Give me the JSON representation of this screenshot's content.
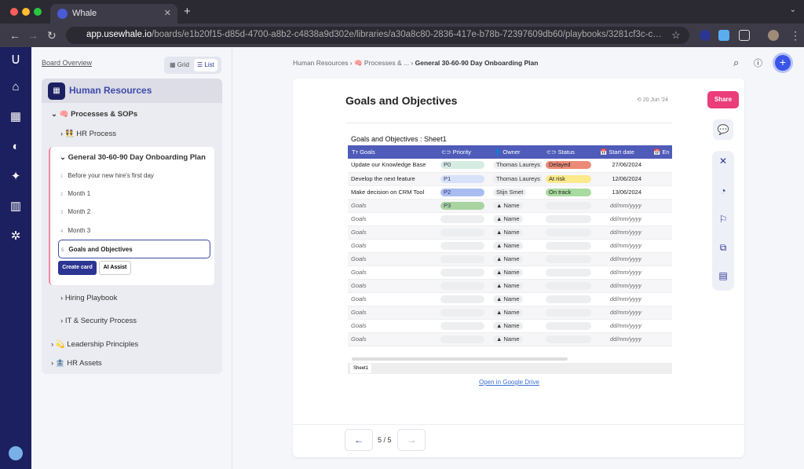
{
  "browser": {
    "tab_title": "Whale",
    "url_host": "app.usewhale.io",
    "url_path": "/boards/e1b20f15-d85d-4700-a8b2-c4838a9d302e/libraries/a30a8c80-2836-417e-b78b-72397609db60/playbooks/3281cf3c-ceae-4cd..."
  },
  "sidebar": {
    "board_overview": "Board Overview",
    "view_grid": "Grid",
    "view_list": "List",
    "space": "Human Resources",
    "items": [
      {
        "label": "🧠 Processes & SOPs"
      },
      {
        "label": "👯 HR Process"
      },
      {
        "label": "General 30-60-90 Day Onboarding Plan"
      },
      {
        "label": "Hiring Playbook"
      },
      {
        "label": "IT & Security Process"
      },
      {
        "label": "💫 Leadership Principles"
      },
      {
        "label": "🏦 HR Assets"
      }
    ],
    "cards": [
      {
        "n": "1",
        "label": "Before your new hire's first day"
      },
      {
        "n": "2",
        "label": "Month 1"
      },
      {
        "n": "3",
        "label": "Month 2"
      },
      {
        "n": "4",
        "label": "Month 3"
      },
      {
        "n": "5",
        "label": "Goals and Objectives"
      }
    ],
    "create_card": "Create card",
    "ai_assist": "AI Assist"
  },
  "breadcrumb": {
    "a": "Human Resources",
    "b": "🧠 Processes & ...",
    "c": "General 30-60-90 Day Onboarding Plan"
  },
  "doc": {
    "title": "Goals and Objectives",
    "date": "20 Jun '24",
    "share": "Share",
    "open_drive": "Open in Google Drive",
    "page": "5 / 5"
  },
  "sheet": {
    "title": "Goals and Objectives : Sheet1",
    "tab": "Sheet1",
    "headers": [
      "Tт Goals",
      "⊂⊃ Priority",
      "👤 Owner",
      "⊂⊃ Status",
      "📅 Start date",
      "📅 En"
    ],
    "rows": [
      {
        "goal": "Update our Knowledge Base",
        "priority": "P0",
        "pcolor": "#d5ece2",
        "owner": "Thomas Laureys",
        "status": "Delayed",
        "scolor": "#ec8a78",
        "date": "27/06/2024"
      },
      {
        "goal": "Develop the next feature",
        "priority": "P1",
        "pcolor": "#d7e2fa",
        "owner": "Thomas Laureys",
        "status": "At risk",
        "scolor": "#fbe98c",
        "date": "12/06/2024"
      },
      {
        "goal": "Make decision on CRM Tool",
        "priority": "P2",
        "pcolor": "#a9bdf3",
        "owner": "Stijn Smet",
        "status": "On track",
        "scolor": "#a9dba0",
        "date": "13/06/2024"
      },
      {
        "goal": "Goals",
        "priority": "P3",
        "pcolor": "#a9d3a0",
        "owner": "▲ Name",
        "status": "",
        "scolor": "",
        "date": "dd/mm/yyyy",
        "ph": true
      },
      {
        "goal": "Goals",
        "priority": "",
        "owner": "▲ Name",
        "status": "",
        "date": "dd/mm/yyyy",
        "ph": true
      },
      {
        "goal": "Goals",
        "priority": "",
        "owner": "▲ Name",
        "status": "",
        "date": "dd/mm/yyyy",
        "ph": true
      },
      {
        "goal": "Goals",
        "priority": "",
        "owner": "▲ Name",
        "status": "",
        "date": "dd/mm/yyyy",
        "ph": true
      },
      {
        "goal": "Goals",
        "priority": "",
        "owner": "▲ Name",
        "status": "",
        "date": "dd/mm/yyyy",
        "ph": true
      },
      {
        "goal": "Goals",
        "priority": "",
        "owner": "▲ Name",
        "status": "",
        "date": "dd/mm/yyyy",
        "ph": true
      },
      {
        "goal": "Goals",
        "priority": "",
        "owner": "▲ Name",
        "status": "",
        "date": "dd/mm/yyyy",
        "ph": true
      },
      {
        "goal": "Goals",
        "priority": "",
        "owner": "▲ Name",
        "status": "",
        "date": "dd/mm/yyyy",
        "ph": true
      },
      {
        "goal": "Goals",
        "priority": "",
        "owner": "▲ Name",
        "status": "",
        "date": "dd/mm/yyyy",
        "ph": true
      },
      {
        "goal": "Goals",
        "priority": "",
        "owner": "▲ Name",
        "status": "",
        "date": "dd/mm/yyyy",
        "ph": true
      },
      {
        "goal": "Goals",
        "priority": "",
        "owner": "▲ Name",
        "status": "",
        "date": "dd/mm/yyyy",
        "ph": true
      }
    ]
  },
  "colors": {
    "rail": "#1d2060",
    "accent": "#2c3592",
    "share": "#ea3d7a",
    "header": "#4f5bb8"
  }
}
